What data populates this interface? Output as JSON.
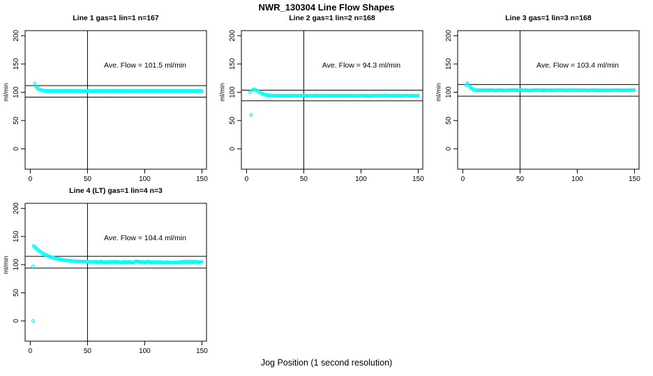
{
  "figure": {
    "title": "NWR_130304  Line Flow Shapes",
    "xlabel": "Jog Position (1 second resolution)"
  },
  "chart_data": {
    "type": "scatter",
    "title": "NWR_130304  Line Flow Shapes",
    "xlabel": "Jog Position (1 second resolution)",
    "ylabel": "ml/min",
    "point_color": "#00ffff",
    "axis_color": "#000000",
    "grid": false,
    "xlim": [
      -4.5,
      154
    ],
    "ylim": [
      -36,
      209
    ],
    "xticks": [
      0,
      50,
      100,
      150
    ],
    "yticks": [
      0,
      50,
      100,
      150,
      200
    ],
    "vline_x": 50,
    "panels": [
      {
        "title": "Line 1 gas=1 lin=1 n=167",
        "n": 167,
        "ave_flow": 101.5,
        "ave_flow_label": "Ave. Flow =  101.5  ml/min",
        "unit": "ml/min",
        "ref_upper": 111.7,
        "ref_lower": 91.4,
        "transient_points": [
          [
            4,
            116
          ],
          [
            5,
            110.5
          ],
          [
            6,
            108
          ],
          [
            7,
            106.5
          ],
          [
            8,
            105.2
          ],
          [
            9,
            104.3
          ],
          [
            10,
            103.7
          ],
          [
            11,
            103.2
          ],
          [
            12,
            102.9
          ],
          [
            13,
            102.7
          ],
          [
            14,
            102.5
          ]
        ],
        "flat_segment": {
          "from": 15,
          "to": 150.4,
          "value": 102.4,
          "noise": 0.35,
          "step": 0.9
        }
      },
      {
        "title": "Line 2 gas=1 lin=2 n=168",
        "n": 168,
        "ave_flow": 94.3,
        "ave_flow_label": "Ave. Flow =  94.3  ml/min",
        "unit": "ml/min",
        "ref_upper": 103.7,
        "ref_lower": 84.9,
        "transient_points": [
          [
            3,
            100.5
          ],
          [
            4,
            60
          ],
          [
            5,
            103.5
          ],
          [
            6,
            104.8
          ],
          [
            7,
            105
          ],
          [
            8,
            104.2
          ],
          [
            9,
            103.1
          ],
          [
            10,
            101.9
          ],
          [
            11,
            100.7
          ],
          [
            12,
            99.5
          ],
          [
            13,
            98.4
          ],
          [
            14,
            97.4
          ],
          [
            15,
            96.6
          ],
          [
            16,
            95.9
          ],
          [
            17,
            95.4
          ],
          [
            18,
            95
          ],
          [
            19,
            94.7
          ],
          [
            20,
            94.5
          ],
          [
            21,
            94.3
          ],
          [
            22,
            94.2
          ],
          [
            23,
            94.1
          ]
        ],
        "flat_segment": {
          "from": 24,
          "to": 150.4,
          "value": 94.0,
          "noise": 0.35,
          "step": 0.9
        }
      },
      {
        "title": "Line 3 gas=1 lin=3 n=168",
        "n": 168,
        "ave_flow": 103.4,
        "ave_flow_label": "Ave. Flow =  103.4  ml/min",
        "unit": "ml/min",
        "ref_upper": 113.7,
        "ref_lower": 93.1,
        "transient_points": [
          [
            3,
            112.5
          ],
          [
            4,
            116
          ],
          [
            5,
            114
          ],
          [
            6,
            110.5
          ],
          [
            7,
            108
          ],
          [
            8,
            106.2
          ],
          [
            9,
            105.2
          ],
          [
            10,
            104.6
          ],
          [
            11,
            104.2
          ],
          [
            12,
            104
          ]
        ],
        "flat_segment": {
          "from": 13,
          "to": 150.4,
          "value": 103.8,
          "noise": 0.45,
          "step": 0.9
        }
      },
      {
        "title": "Line 4 (LT) gas=1 lin=4 n=3",
        "n": 3,
        "ave_flow": 104.4,
        "ave_flow_label": "Ave. Flow =  104.4  ml/min",
        "unit": "ml/min",
        "ref_upper": 114.8,
        "ref_lower": 94.0,
        "transient_points": [
          [
            2.5,
            0
          ],
          [
            2.5,
            97
          ],
          [
            3,
            133.5
          ],
          [
            4,
            131.4
          ],
          [
            5,
            129.4
          ],
          [
            6,
            127.5
          ],
          [
            7,
            125.8
          ],
          [
            8,
            124.2
          ],
          [
            9,
            122.8
          ],
          [
            10,
            121.4
          ],
          [
            11,
            120.2
          ],
          [
            12,
            119
          ],
          [
            13,
            117.9
          ],
          [
            14,
            116.9
          ],
          [
            15,
            116
          ],
          [
            16,
            115.2
          ],
          [
            17,
            114.4
          ],
          [
            18,
            113.7
          ],
          [
            19,
            113
          ],
          [
            20,
            112.4
          ],
          [
            21,
            111.8
          ],
          [
            22,
            111.2
          ],
          [
            23,
            110.7
          ],
          [
            24,
            110.2
          ],
          [
            25,
            109.8
          ],
          [
            26,
            109.4
          ],
          [
            27,
            109.1
          ],
          [
            28,
            108.7
          ],
          [
            29,
            108.4
          ],
          [
            30,
            108.1
          ],
          [
            31,
            107.9
          ],
          [
            32,
            107.6
          ],
          [
            33,
            107.4
          ],
          [
            34,
            107.2
          ],
          [
            35,
            107
          ],
          [
            36,
            106.8
          ],
          [
            37,
            106.6
          ],
          [
            38,
            106.4
          ],
          [
            39,
            106.3
          ],
          [
            40,
            106.2
          ],
          [
            41,
            106.1
          ],
          [
            42,
            105.9
          ],
          [
            43,
            105.8
          ],
          [
            44,
            105.7
          ],
          [
            45,
            105.6
          ],
          [
            46,
            105.5
          ],
          [
            47,
            105.5
          ],
          [
            48,
            105.4
          ],
          [
            49,
            105.3
          ],
          [
            50,
            105.3
          ],
          [
            51,
            105.2
          ],
          [
            52,
            105.1
          ],
          [
            53,
            105.1
          ],
          [
            54,
            105
          ],
          [
            55,
            105
          ]
        ],
        "flat_segment": {
          "from": 56,
          "to": 150.4,
          "value": 104.6,
          "noise": 1.2,
          "step": 0.9
        }
      }
    ]
  }
}
